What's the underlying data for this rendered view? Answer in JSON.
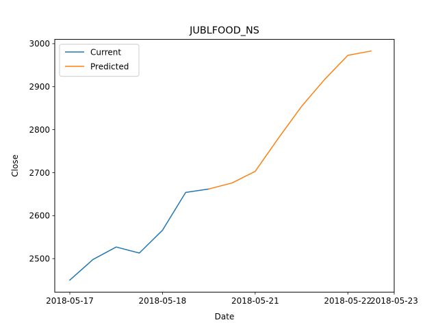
{
  "chart_data": {
    "type": "line",
    "title": "JUBLFOOD_NS",
    "xlabel": "Date",
    "ylabel": "Close",
    "x_tick_labels": [
      "2018-05-17",
      "2018-05-18",
      "2018-05-21",
      "2018-05-22",
      "2018-05-23"
    ],
    "y_tick_labels": [
      "2500",
      "2600",
      "2700",
      "2800",
      "2900",
      "3000"
    ],
    "y_ticks": [
      2500,
      2600,
      2700,
      2800,
      2900,
      3000
    ],
    "ylim": [
      2422,
      3010
    ],
    "xlim": [
      -0.65,
      14
    ],
    "x_tick_positions": [
      0,
      4,
      8,
      12,
      14
    ],
    "grid": false,
    "legend_position": "upper left",
    "series": [
      {
        "name": "Current",
        "color": "#1f77b4",
        "x": [
          0,
          1,
          2,
          3,
          4,
          5,
          6
        ],
        "values": [
          2450,
          2498,
          2527,
          2513,
          2566,
          2654,
          2662
        ]
      },
      {
        "name": "Predicted",
        "color": "#ff7f0e",
        "x": [
          6,
          7,
          8,
          9,
          10,
          11,
          12,
          13
        ],
        "values": [
          2662,
          2676,
          2703,
          2780,
          2854,
          2917,
          2973,
          2983
        ]
      }
    ]
  }
}
